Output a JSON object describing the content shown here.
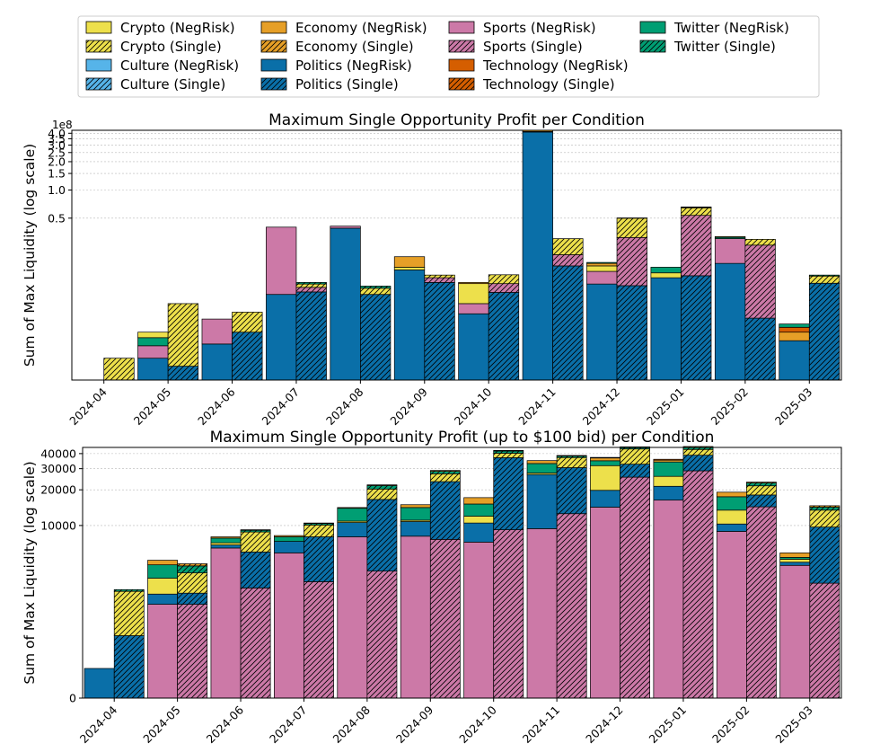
{
  "legend": [
    {
      "label": "Crypto (NegRisk)",
      "category": "crypto",
      "kind": "negrisk"
    },
    {
      "label": "Crypto (Single)",
      "category": "crypto",
      "kind": "single"
    },
    {
      "label": "Culture (NegRisk)",
      "category": "culture",
      "kind": "negrisk"
    },
    {
      "label": "Culture (Single)",
      "category": "culture",
      "kind": "single"
    },
    {
      "label": "Economy (NegRisk)",
      "category": "economy",
      "kind": "negrisk"
    },
    {
      "label": "Economy (Single)",
      "category": "economy",
      "kind": "single"
    },
    {
      "label": "Politics (NegRisk)",
      "category": "politics",
      "kind": "negrisk"
    },
    {
      "label": "Politics (Single)",
      "category": "politics",
      "kind": "single"
    },
    {
      "label": "Sports (NegRisk)",
      "category": "sports",
      "kind": "negrisk"
    },
    {
      "label": "Sports (Single)",
      "category": "sports",
      "kind": "single"
    },
    {
      "label": "Technology (NegRisk)",
      "category": "technology",
      "kind": "negrisk"
    },
    {
      "label": "Technology (Single)",
      "category": "technology",
      "kind": "single"
    },
    {
      "label": "Twitter (NegRisk)",
      "category": "twitter",
      "kind": "negrisk"
    },
    {
      "label": "Twitter (Single)",
      "category": "twitter",
      "kind": "single"
    }
  ],
  "colors": {
    "crypto": "#ede04b",
    "culture": "#56b4e9",
    "economy": "#e69f27",
    "politics": "#0a6fa8",
    "sports": "#cc79a7",
    "technology": "#d55e00",
    "twitter": "#009e73"
  },
  "chart_data": [
    {
      "type": "bar",
      "stacked": true,
      "title": "Maximum Single Opportunity Profit per Condition",
      "ylabel": "Sum of Max Liquidity (log scale)",
      "xlabel": "",
      "scale": "symlog",
      "offset_label": "1e8",
      "ylim": [
        0,
        4.3
      ],
      "yticks": [
        {
          "v": 0.5,
          "label": "0.5"
        },
        {
          "v": 1.0,
          "label": "1.0"
        },
        {
          "v": 1.5,
          "label": "1.5"
        },
        {
          "v": 2.0,
          "label": "2.0"
        },
        {
          "v": 2.5,
          "label": "2.5"
        },
        {
          "v": 3.0,
          "label": "3.0"
        },
        {
          "v": 3.5,
          "label": "3.5"
        },
        {
          "v": 4.0,
          "label": "4.0"
        }
      ],
      "categories": [
        "2024-04",
        "2024-05",
        "2024-06",
        "2024-07",
        "2024-08",
        "2024-09",
        "2024-10",
        "2024-11",
        "2024-12",
        "2025-01",
        "2025-02",
        "2025-03"
      ],
      "negrisk": [
        [],
        [
          {
            "c": "politics",
            "v": 0.007
          },
          {
            "c": "sports",
            "v": 0.006
          },
          {
            "c": "twitter",
            "v": 0.005
          },
          {
            "c": "crypto",
            "v": 0.004
          }
        ],
        [
          {
            "c": "politics",
            "v": 0.014
          },
          {
            "c": "sports",
            "v": 0.02
          }
        ],
        [
          {
            "c": "politics",
            "v": 0.07
          },
          {
            "c": "sports",
            "v": 0.33
          }
        ],
        [
          {
            "c": "politics",
            "v": 0.39
          },
          {
            "c": "sports",
            "v": 0.02
          }
        ],
        [
          {
            "c": "politics",
            "v": 0.135
          },
          {
            "c": "crypto",
            "v": 0.01
          },
          {
            "c": "economy",
            "v": 0.045
          }
        ],
        [
          {
            "c": "politics",
            "v": 0.04
          },
          {
            "c": "sports",
            "v": 0.014
          },
          {
            "c": "crypto",
            "v": 0.04
          },
          {
            "c": "economy",
            "v": 0.003
          }
        ],
        [
          {
            "c": "politics",
            "v": 4.12
          },
          {
            "c": "crypto",
            "v": 0.05
          },
          {
            "c": "economy",
            "v": 0.13
          }
        ],
        [
          {
            "c": "politics",
            "v": 0.093
          },
          {
            "c": "sports",
            "v": 0.037
          },
          {
            "c": "crypto",
            "v": 0.02
          },
          {
            "c": "economy",
            "v": 0.01
          },
          {
            "c": "twitter",
            "v": 0.004
          }
        ],
        [
          {
            "c": "politics",
            "v": 0.11
          },
          {
            "c": "crypto",
            "v": 0.015
          },
          {
            "c": "twitter",
            "v": 0.02
          }
        ],
        [
          {
            "c": "politics",
            "v": 0.16
          },
          {
            "c": "sports",
            "v": 0.14
          },
          {
            "c": "twitter",
            "v": 0.01
          },
          {
            "c": "crypto",
            "v": 0.006
          }
        ],
        [
          {
            "c": "politics",
            "v": 0.016
          },
          {
            "c": "economy",
            "v": 0.006
          },
          {
            "c": "technology",
            "v": 0.004
          },
          {
            "c": "twitter",
            "v": 0.003
          }
        ]
      ],
      "single": [
        [
          {
            "c": "crypto",
            "v": 0.007
          }
        ],
        [
          {
            "c": "politics",
            "v": 0.004
          },
          {
            "c": "crypto",
            "v": 0.05
          }
        ],
        [
          {
            "c": "politics",
            "v": 0.022
          },
          {
            "c": "crypto",
            "v": 0.02
          }
        ],
        [
          {
            "c": "politics",
            "v": 0.075
          },
          {
            "c": "sports",
            "v": 0.01
          },
          {
            "c": "crypto",
            "v": 0.008
          },
          {
            "c": "twitter",
            "v": 0.004
          }
        ],
        [
          {
            "c": "politics",
            "v": 0.07
          },
          {
            "c": "crypto",
            "v": 0.013
          },
          {
            "c": "twitter",
            "v": 0.005
          }
        ],
        [
          {
            "c": "politics",
            "v": 0.097
          },
          {
            "c": "sports",
            "v": 0.013
          },
          {
            "c": "crypto",
            "v": 0.008
          }
        ],
        [
          {
            "c": "politics",
            "v": 0.074
          },
          {
            "c": "sports",
            "v": 0.02
          },
          {
            "c": "crypto",
            "v": 0.025
          }
        ],
        [
          {
            "c": "politics",
            "v": 0.15
          },
          {
            "c": "sports",
            "v": 0.05
          },
          {
            "c": "crypto",
            "v": 0.1
          }
        ],
        [
          {
            "c": "politics",
            "v": 0.089
          },
          {
            "c": "sports",
            "v": 0.22
          },
          {
            "c": "crypto",
            "v": 0.19
          },
          {
            "c": "twitter",
            "v": 0.004
          }
        ],
        [
          {
            "c": "politics",
            "v": 0.116
          },
          {
            "c": "sports",
            "v": 0.42
          },
          {
            "c": "crypto",
            "v": 0.11
          },
          {
            "c": "technology",
            "v": 0.004
          },
          {
            "c": "twitter",
            "v": 0.01
          }
        ],
        [
          {
            "c": "politics",
            "v": 0.035
          },
          {
            "c": "sports",
            "v": 0.22
          },
          {
            "c": "crypto",
            "v": 0.04
          }
        ],
        [
          {
            "c": "politics",
            "v": 0.095
          },
          {
            "c": "crypto",
            "v": 0.02
          },
          {
            "c": "twitter",
            "v": 0.003
          }
        ]
      ]
    },
    {
      "type": "bar",
      "stacked": true,
      "title": "Maximum Single Opportunity Profit (up to $100 bid) per Condition",
      "ylabel": "Sum of Max Liquidity (log scale)",
      "xlabel": "",
      "scale": "symlog",
      "ylim": [
        0,
        45000
      ],
      "yticks": [
        {
          "v": 0,
          "label": "0"
        },
        {
          "v": 10000,
          "label": "10000"
        },
        {
          "v": 20000,
          "label": "20000"
        },
        {
          "v": 30000,
          "label": "30000"
        },
        {
          "v": 40000,
          "label": "40000"
        }
      ],
      "categories": [
        "2024-04",
        "2024-05",
        "2024-06",
        "2024-07",
        "2024-08",
        "2024-09",
        "2024-10",
        "2024-11",
        "2024-12",
        "2025-01",
        "2025-02",
        "2025-03"
      ],
      "negrisk": [
        [
          {
            "c": "politics",
            "v": 300
          }
        ],
        [
          {
            "c": "sports",
            "v": 1950
          },
          {
            "c": "politics",
            "v": 500
          },
          {
            "c": "crypto",
            "v": 1000
          },
          {
            "c": "twitter",
            "v": 1100
          },
          {
            "c": "economy",
            "v": 450
          }
        ],
        [
          {
            "c": "sports",
            "v": 6400
          },
          {
            "c": "politics",
            "v": 400
          },
          {
            "c": "crypto",
            "v": 300
          },
          {
            "c": "twitter",
            "v": 700
          },
          {
            "c": "economy",
            "v": 200
          }
        ],
        [
          {
            "c": "sports",
            "v": 5800
          },
          {
            "c": "politics",
            "v": 1500
          },
          {
            "c": "twitter",
            "v": 700
          },
          {
            "c": "economy",
            "v": 200
          }
        ],
        [
          {
            "c": "sports",
            "v": 8000
          },
          {
            "c": "politics",
            "v": 2600
          },
          {
            "c": "crypto",
            "v": 300
          },
          {
            "c": "twitter",
            "v": 3100
          },
          {
            "c": "economy",
            "v": 200
          }
        ],
        [
          {
            "c": "sports",
            "v": 8100
          },
          {
            "c": "politics",
            "v": 2700
          },
          {
            "c": "crypto",
            "v": 300
          },
          {
            "c": "twitter",
            "v": 3100
          },
          {
            "c": "economy",
            "v": 800
          }
        ],
        [
          {
            "c": "sports",
            "v": 7200
          },
          {
            "c": "politics",
            "v": 3300
          },
          {
            "c": "crypto",
            "v": 1500
          },
          {
            "c": "twitter",
            "v": 3200
          },
          {
            "c": "economy",
            "v": 2000
          }
        ],
        [
          {
            "c": "sports",
            "v": 9400
          },
          {
            "c": "politics",
            "v": 17400
          },
          {
            "c": "crypto",
            "v": 800
          },
          {
            "c": "twitter",
            "v": 5500
          },
          {
            "c": "economy",
            "v": 1900
          }
        ],
        [
          {
            "c": "sports",
            "v": 14300
          },
          {
            "c": "politics",
            "v": 5500
          },
          {
            "c": "crypto",
            "v": 12000
          },
          {
            "c": "twitter",
            "v": 3100
          },
          {
            "c": "economy",
            "v": 1900
          },
          {
            "c": "technology",
            "v": 400
          }
        ],
        [
          {
            "c": "sports",
            "v": 16400
          },
          {
            "c": "politics",
            "v": 5000
          },
          {
            "c": "crypto",
            "v": 4500
          },
          {
            "c": "twitter",
            "v": 8200
          },
          {
            "c": "economy",
            "v": 1200
          },
          {
            "c": "technology",
            "v": 600
          }
        ],
        [
          {
            "c": "sports",
            "v": 8900
          },
          {
            "c": "politics",
            "v": 1400
          },
          {
            "c": "crypto",
            "v": 3200
          },
          {
            "c": "twitter",
            "v": 4000
          },
          {
            "c": "economy",
            "v": 1600
          }
        ],
        [
          {
            "c": "sports",
            "v": 4500
          },
          {
            "c": "politics",
            "v": 300
          },
          {
            "c": "crypto",
            "v": 300
          },
          {
            "c": "twitter",
            "v": 200
          },
          {
            "c": "economy",
            "v": 500
          }
        ]
      ],
      "single": [
        [
          {
            "c": "politics",
            "v": 900
          },
          {
            "c": "crypto",
            "v": 1700
          },
          {
            "c": "twitter",
            "v": 100
          }
        ],
        [
          {
            "c": "sports",
            "v": 1950
          },
          {
            "c": "politics",
            "v": 550
          },
          {
            "c": "crypto",
            "v": 1350
          },
          {
            "c": "twitter",
            "v": 600
          },
          {
            "c": "economy",
            "v": 200
          }
        ],
        [
          {
            "c": "sports",
            "v": 2800
          },
          {
            "c": "politics",
            "v": 3100
          },
          {
            "c": "crypto",
            "v": 2900
          },
          {
            "c": "twitter",
            "v": 300
          },
          {
            "c": "economy",
            "v": 100
          }
        ],
        [
          {
            "c": "sports",
            "v": 3200
          },
          {
            "c": "politics",
            "v": 4800
          },
          {
            "c": "crypto",
            "v": 2100
          },
          {
            "c": "twitter",
            "v": 300
          },
          {
            "c": "economy",
            "v": 100
          }
        ],
        [
          {
            "c": "sports",
            "v": 4000
          },
          {
            "c": "politics",
            "v": 12600
          },
          {
            "c": "crypto",
            "v": 3700
          },
          {
            "c": "twitter",
            "v": 1400
          },
          {
            "c": "economy",
            "v": 300
          }
        ],
        [
          {
            "c": "sports",
            "v": 7600
          },
          {
            "c": "politics",
            "v": 15800
          },
          {
            "c": "crypto",
            "v": 3800
          },
          {
            "c": "twitter",
            "v": 1300
          },
          {
            "c": "economy",
            "v": 500
          }
        ],
        [
          {
            "c": "sports",
            "v": 9200
          },
          {
            "c": "politics",
            "v": 27800
          },
          {
            "c": "crypto",
            "v": 3300
          },
          {
            "c": "twitter",
            "v": 1700
          },
          {
            "c": "economy",
            "v": 500
          }
        ],
        [
          {
            "c": "sports",
            "v": 12600
          },
          {
            "c": "politics",
            "v": 18000
          },
          {
            "c": "crypto",
            "v": 6500
          },
          {
            "c": "twitter",
            "v": 1100
          },
          {
            "c": "economy",
            "v": 400
          }
        ],
        [
          {
            "c": "sports",
            "v": 25500
          },
          {
            "c": "politics",
            "v": 7200
          },
          {
            "c": "crypto",
            "v": 11000
          },
          {
            "c": "twitter",
            "v": 1300
          },
          {
            "c": "economy",
            "v": 500
          }
        ],
        [
          {
            "c": "sports",
            "v": 28800
          },
          {
            "c": "politics",
            "v": 10000
          },
          {
            "c": "crypto",
            "v": 4500
          },
          {
            "c": "twitter",
            "v": 1800
          },
          {
            "c": "economy",
            "v": 700
          }
        ],
        [
          {
            "c": "sports",
            "v": 14400
          },
          {
            "c": "politics",
            "v": 3700
          },
          {
            "c": "crypto",
            "v": 3500
          },
          {
            "c": "twitter",
            "v": 1200
          },
          {
            "c": "economy",
            "v": 400
          }
        ],
        [
          {
            "c": "sports",
            "v": 3100
          },
          {
            "c": "politics",
            "v": 6600
          },
          {
            "c": "crypto",
            "v": 3800
          },
          {
            "c": "twitter",
            "v": 800
          },
          {
            "c": "economy",
            "v": 400
          }
        ]
      ]
    }
  ]
}
